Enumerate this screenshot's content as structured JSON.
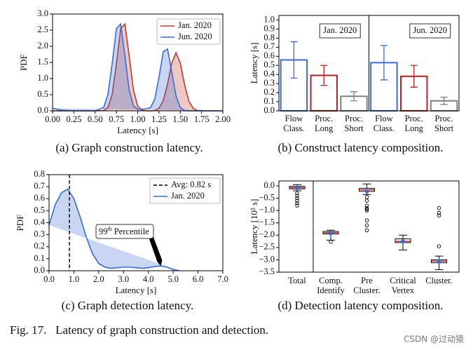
{
  "chart_data": [
    {
      "type": "line",
      "caption": "(a) Graph construction latency.",
      "xlabel": "Latency [s]",
      "ylabel": "PDF",
      "x": [
        0,
        0.1,
        0.25,
        0.5,
        0.6,
        0.65,
        0.7,
        0.75,
        0.8,
        0.85,
        0.9,
        0.95,
        1.0,
        1.05,
        1.1,
        1.15,
        1.2,
        1.25,
        1.3,
        1.35,
        1.4,
        1.45,
        1.5,
        1.55,
        1.6,
        1.65,
        1.7,
        1.8,
        2.0
      ],
      "series": [
        {
          "name": "Jan. 2020",
          "color": "#c0392b",
          "values": [
            0,
            0,
            0,
            0,
            0.01,
            0.1,
            0.5,
            1.46,
            2.55,
            2.69,
            1.7,
            0.64,
            0.15,
            0.02,
            0,
            0,
            0.01,
            0.08,
            0.31,
            0.82,
            1.48,
            1.8,
            1.48,
            0.82,
            0.31,
            0.08,
            0.01,
            0,
            0
          ]
        },
        {
          "name": "Jun. 2020",
          "color": "#3a6bd8",
          "values": [
            0.08,
            0.02,
            0,
            0,
            0.1,
            0.5,
            1.46,
            2.55,
            2.69,
            1.7,
            0.64,
            0.15,
            0.05,
            0.05,
            0.06,
            0.1,
            0.36,
            1.04,
            1.83,
            1.92,
            1.21,
            0.46,
            0.1,
            0.01,
            0,
            0,
            0,
            0,
            0
          ]
        }
      ],
      "xlim": [
        0,
        2
      ],
      "ylim": [
        0,
        3
      ],
      "xticks": [
        {
          "value": 0,
          "label": "0.00"
        },
        0.25,
        {
          "value": 0.5,
          "label": "0.50"
        },
        0.75,
        {
          "value": 1,
          "label": "1.00"
        },
        1.25,
        {
          "value": 1.5,
          "label": "1.50"
        },
        1.75,
        {
          "value": 2,
          "label": "2.00"
        }
      ],
      "yticks": [
        {
          "value": 0,
          "label": "0.0"
        },
        0.5,
        {
          "value": 1,
          "label": "1.0"
        },
        1.5,
        {
          "value": 2,
          "label": "2.0"
        },
        2.5,
        {
          "value": 3,
          "label": "3.0"
        }
      ],
      "legend": "upper right",
      "fill": true
    },
    {
      "type": "bar",
      "caption": "(b) Construct latency composition.",
      "ylabel": "Latency [s]",
      "categories": [
        "Flow Class.",
        "Proc. Long",
        "Proc. Short"
      ],
      "colors": [
        "#3a6bd8",
        "#b22222",
        "#808080"
      ],
      "groups": [
        {
          "label": "Jan. 2020",
          "values": [
            0.56,
            0.39,
            0.16
          ],
          "errors": [
            0.2,
            0.11,
            0.05
          ]
        },
        {
          "label": "Jun. 2020",
          "values": [
            0.53,
            0.38,
            0.11
          ],
          "errors": [
            0.19,
            0.12,
            0.04
          ]
        }
      ],
      "ylim": [
        0,
        1.05
      ],
      "yticks": [
        {
          "value": 0,
          "label": "0.0"
        },
        0.1,
        0.2,
        0.3,
        0.4,
        0.5,
        0.6,
        0.7,
        0.8,
        0.9,
        {
          "value": 1,
          "label": "1.0"
        }
      ]
    },
    {
      "type": "area",
      "caption": "(c) Graph detection latency.",
      "xlabel": "Latency [s]",
      "ylabel": "PDF",
      "x": [
        0,
        0.25,
        0.5,
        0.75,
        1.0,
        1.25,
        1.5,
        1.75,
        2.0,
        2.25,
        2.5,
        2.75,
        3.0,
        3.25,
        3.5,
        3.75,
        4.0,
        4.25,
        4.5,
        4.75,
        5.0,
        5.25
      ],
      "series": [
        {
          "name": "Jan. 2020",
          "color": "#3a6bd8",
          "values": [
            0.38,
            0.55,
            0.65,
            0.68,
            0.6,
            0.45,
            0.28,
            0.14,
            0.06,
            0.03,
            0.02,
            0.025,
            0.03,
            0.03,
            0.025,
            0.02,
            0.025,
            0.035,
            0.04,
            0.03,
            0.01,
            0
          ]
        }
      ],
      "avg": {
        "label": "Avg: 0.82 s",
        "value": 0.82
      },
      "annotation": {
        "number": "99",
        "suffix": "th",
        "text": "Percentile",
        "x": 4.5,
        "y": 0.04
      },
      "xlim": [
        0,
        7
      ],
      "ylim": [
        0,
        0.8
      ],
      "xticks": [
        {
          "value": 0,
          "label": "0.0"
        },
        {
          "value": 1,
          "label": "1.0"
        },
        {
          "value": 2,
          "label": "2.0"
        },
        {
          "value": 3,
          "label": "3.0"
        },
        {
          "value": 4,
          "label": "4.0"
        },
        {
          "value": 5,
          "label": "5.0"
        },
        {
          "value": 6,
          "label": "6.0"
        },
        {
          "value": 7,
          "label": "7.0"
        }
      ],
      "yticks": [
        {
          "value": 0,
          "label": "0.0"
        },
        0.1,
        0.2,
        0.3,
        0.4,
        0.5,
        0.6,
        0.7,
        0.8
      ],
      "legend": "upper right"
    },
    {
      "type": "box",
      "caption": "(d) Detection latency composition.",
      "ylabel": "Latency [10³ s]",
      "categories": [
        "Total",
        "Comp. Identify",
        "Pre Cluster.",
        "Critical Vertex",
        "Cluster."
      ],
      "median_color": "#d62728",
      "mean_color": "#3a6bd8",
      "boxes": [
        {
          "whislo": -0.2,
          "q1": -0.12,
          "med": -0.07,
          "q3": -0.02,
          "whishi": 0.05,
          "mean": -0.08,
          "fliers": [
            -0.3,
            -0.4,
            -0.5,
            -0.6,
            -0.7,
            -0.8
          ]
        },
        {
          "whislo": -2.2,
          "q1": -1.95,
          "med": -1.9,
          "q3": -1.85,
          "whishi": -1.8,
          "mean": -1.92,
          "fliers": [
            -2.27
          ]
        },
        {
          "whislo": -0.35,
          "q1": -0.22,
          "med": -0.16,
          "q3": -0.1,
          "whishi": 0.08,
          "mean": -0.22,
          "fliers": [
            -0.45,
            -0.6,
            -0.8,
            -0.9,
            -0.95,
            -1.0,
            -1.4,
            -1.6,
            -1.8
          ]
        },
        {
          "whislo": -2.6,
          "q1": -2.3,
          "med": -2.25,
          "q3": -2.15,
          "whishi": -2.0,
          "mean": -2.25,
          "fliers": []
        },
        {
          "whislo": -3.4,
          "q1": -3.12,
          "med": -3.05,
          "q3": -3.0,
          "whishi": -2.85,
          "mean": -3.05,
          "fliers": [
            -2.45,
            -1.2,
            -1.1,
            -0.9
          ]
        }
      ],
      "ylim": [
        -3.5,
        0.2
      ],
      "yticks": [
        {
          "value": 0,
          "label": "0.0"
        },
        {
          "value": -0.5,
          "label": "−0.5"
        },
        {
          "value": -1,
          "label": "−1.0"
        },
        {
          "value": -1.5,
          "label": "−1.5"
        },
        {
          "value": -2,
          "label": "−2.0"
        },
        {
          "value": -2.5,
          "label": "−2.5"
        },
        {
          "value": -3,
          "label": "−3.0"
        },
        {
          "value": -3.5,
          "label": "−3.5"
        }
      ]
    }
  ],
  "figure_caption": "Fig. 17.   Latency of graph construction and detection.",
  "watermark": "CSDN @过动猿"
}
